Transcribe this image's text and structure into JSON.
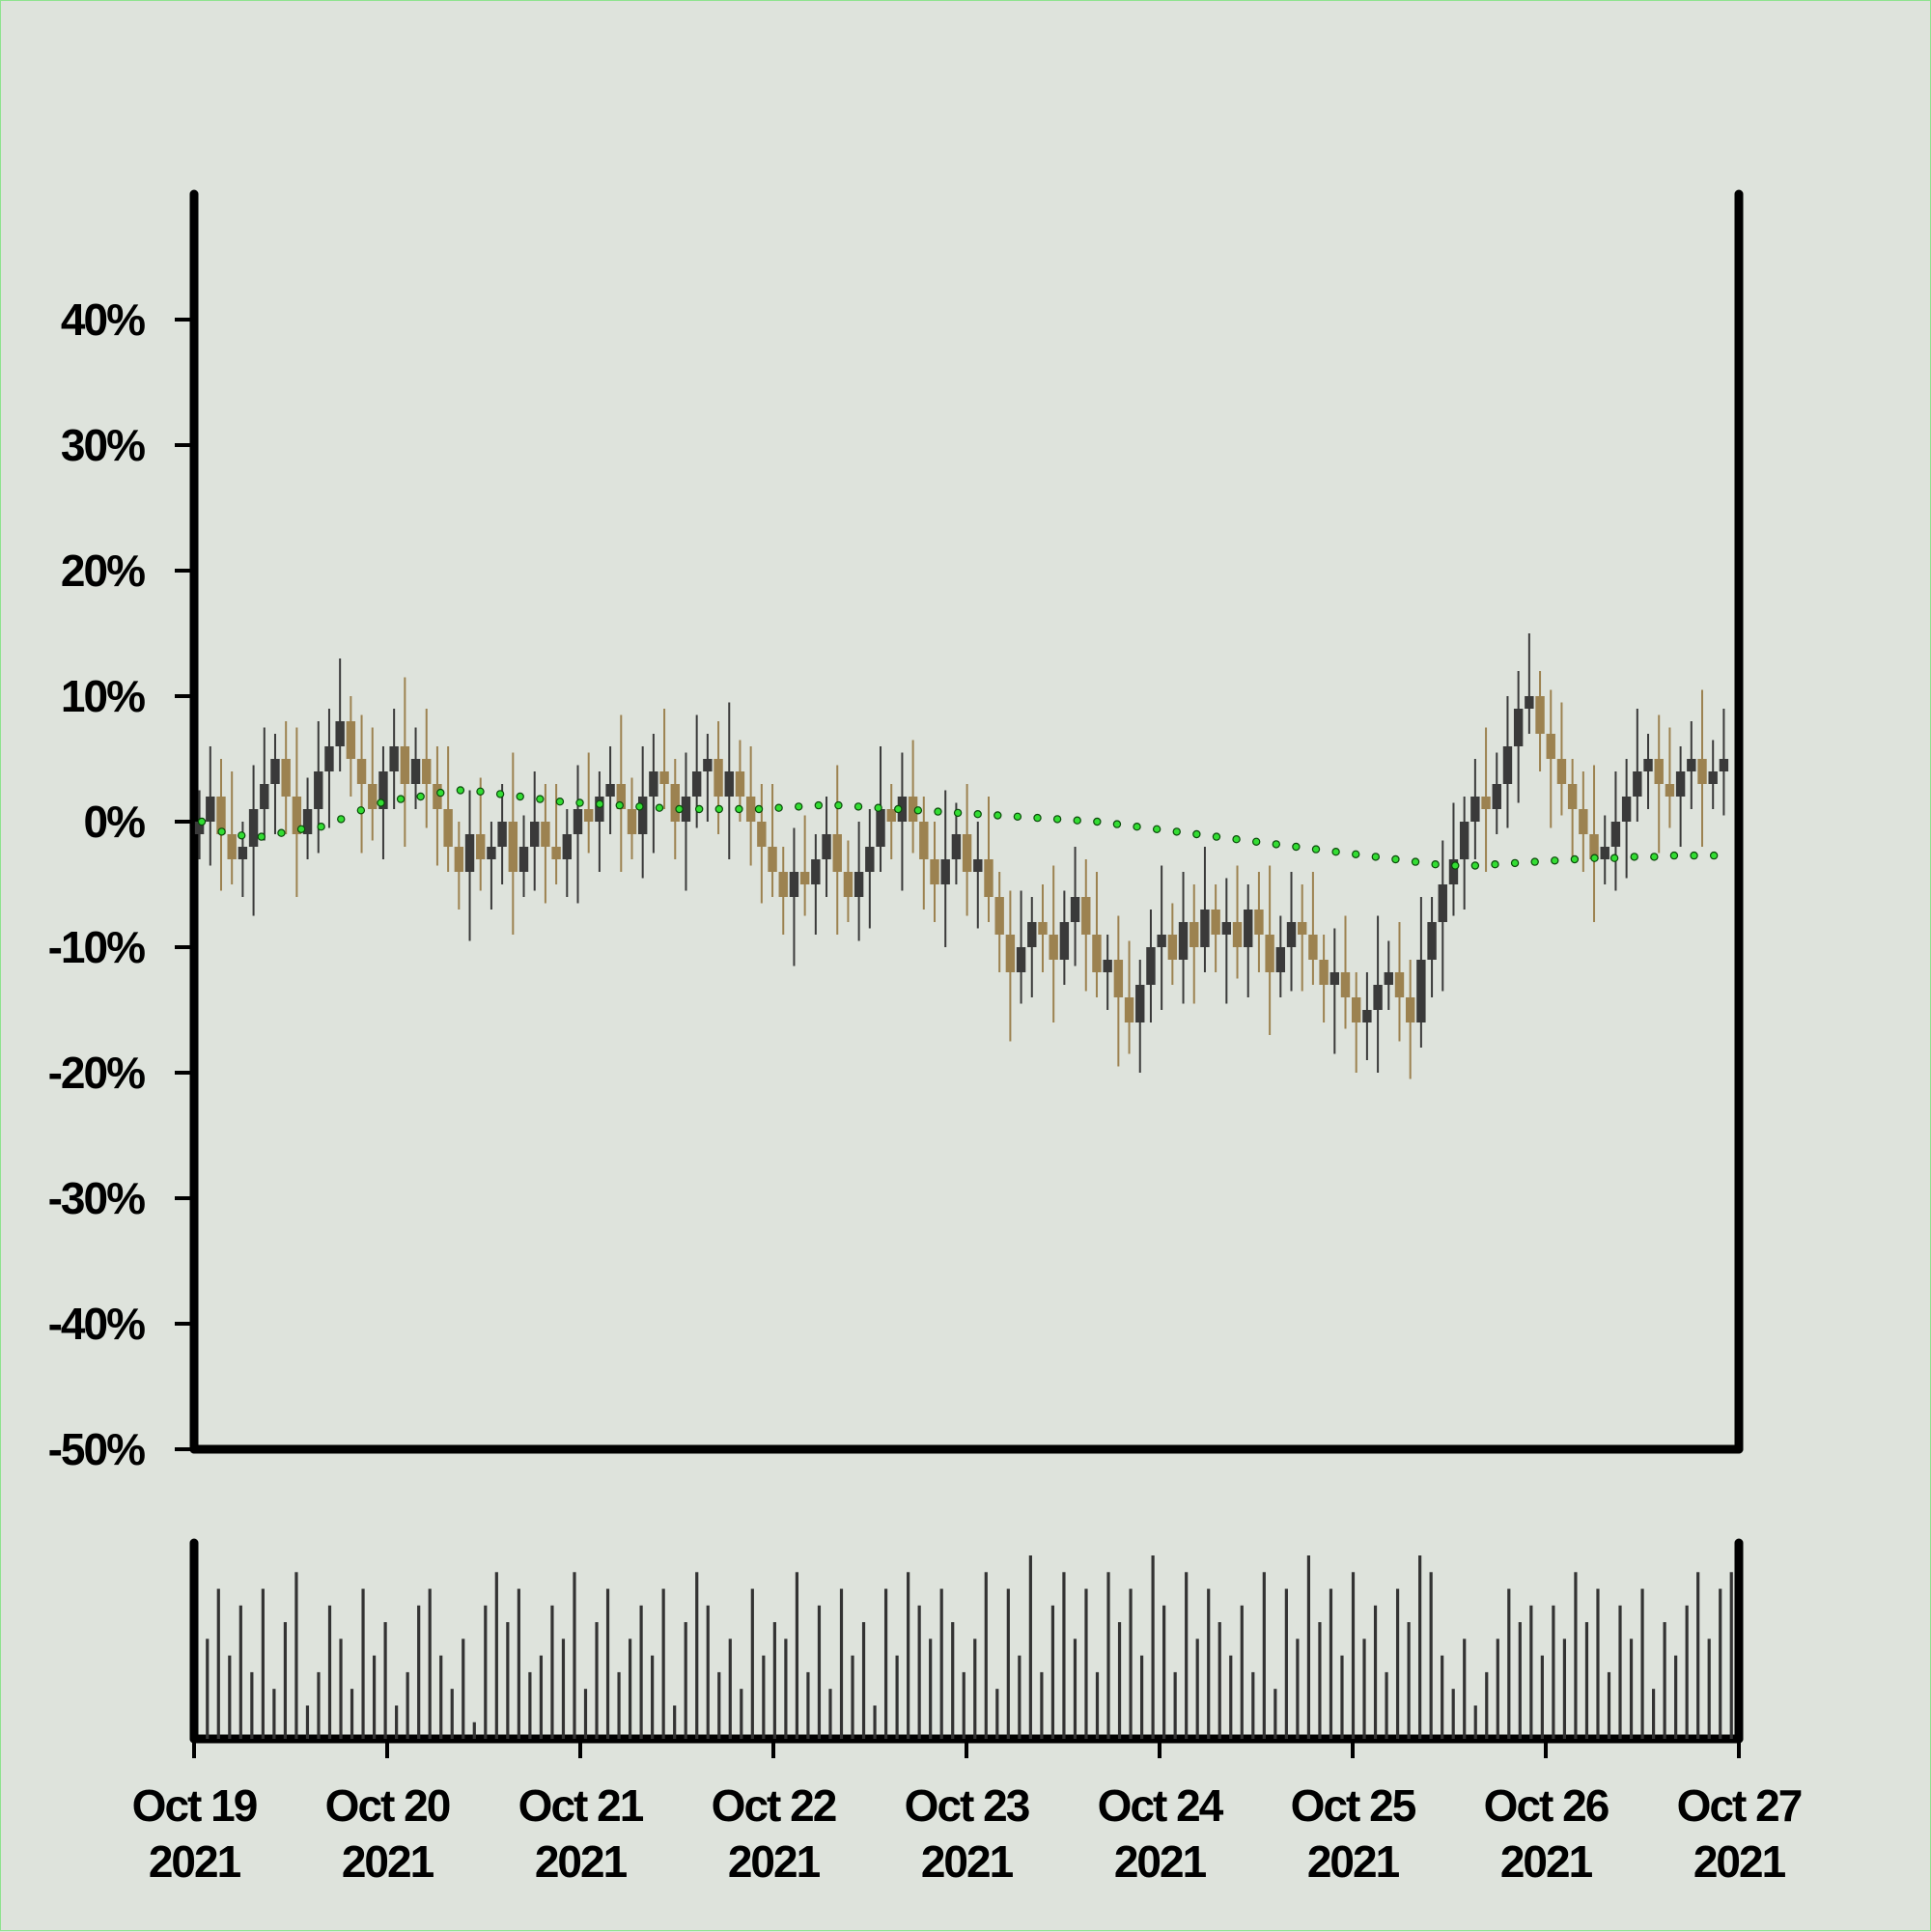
{
  "chart_data": {
    "type": "candlestick",
    "title": "",
    "xlabel": "",
    "ylabel": "",
    "x_range": [
      "2021-10-19",
      "2021-10-27"
    ],
    "x_tick_dates": [
      "2021-10-19",
      "2021-10-20",
      "2021-10-21",
      "2021-10-22",
      "2021-10-23",
      "2021-10-24",
      "2021-10-25",
      "2021-10-26",
      "2021-10-27"
    ],
    "x_tick_labels": [
      [
        "Oct 19",
        "2021"
      ],
      [
        "Oct 20",
        "2021"
      ],
      [
        "Oct 21",
        "2021"
      ],
      [
        "Oct 22",
        "2021"
      ],
      [
        "Oct 23",
        "2021"
      ],
      [
        "Oct 24",
        "2021"
      ],
      [
        "Oct 25",
        "2021"
      ],
      [
        "Oct 26",
        "2021"
      ],
      [
        "Oct 27",
        "2021"
      ]
    ],
    "y_ticks": [
      40,
      30,
      20,
      10,
      0,
      -10,
      -20,
      -30,
      -40,
      -50
    ],
    "y_tick_labels": [
      "40%",
      "30%",
      "20%",
      "10%",
      "0%",
      "-10%",
      "-20%",
      "-30%",
      "-40%",
      "-50%"
    ],
    "ylim": [
      -50,
      50
    ],
    "y_unit": "%",
    "grid": false,
    "legend": "none",
    "colors": {
      "background": "#dee3dc",
      "up_candle": "#3a3a3a",
      "down_candle": "#9c8250",
      "moving_average": "#33dd33",
      "volume": "#333333",
      "axis": "#000000"
    },
    "series": [
      {
        "kind": "close_percent_change",
        "values": [
          0,
          2,
          -1,
          -3,
          -2,
          1,
          3,
          5,
          2,
          -1,
          1,
          4,
          6,
          8,
          5,
          3,
          1,
          4,
          6,
          3,
          5,
          3,
          1,
          -2,
          -4,
          -1,
          -3,
          -2,
          0,
          -4,
          -2,
          0,
          -2,
          -3,
          -1,
          1,
          0,
          2,
          3,
          1,
          -1,
          2,
          4,
          3,
          0,
          2,
          4,
          5,
          2,
          4,
          2,
          0,
          -2,
          -4,
          -6,
          -4,
          -5,
          -3,
          -1,
          -4,
          -6,
          -4,
          -2,
          1,
          0,
          2,
          0,
          -3,
          -5,
          -3,
          -1,
          -4,
          -3,
          -6,
          -9,
          -12,
          -10,
          -8,
          -9,
          -11,
          -8,
          -6,
          -9,
          -12,
          -11,
          -14,
          -16,
          -13,
          -10,
          -9,
          -11,
          -8,
          -10,
          -7,
          -9,
          -8,
          -10,
          -7,
          -9,
          -12,
          -10,
          -8,
          -9,
          -11,
          -13,
          -12,
          -14,
          -16,
          -15,
          -13,
          -12,
          -14,
          -16,
          -11,
          -8,
          -5,
          -3,
          0,
          2,
          1,
          3,
          6,
          9,
          10,
          7,
          5,
          3,
          1,
          -1,
          -3,
          -2,
          0,
          2,
          4,
          5,
          3,
          2,
          4,
          5,
          3,
          4,
          5
        ]
      },
      {
        "kind": "moving_average",
        "values": [
          0,
          -0.8,
          -1.1,
          -1.2,
          -0.9,
          -0.6,
          -0.4,
          0.2,
          0.9,
          1.5,
          1.8,
          2.0,
          2.3,
          2.5,
          2.4,
          2.2,
          2.0,
          1.8,
          1.6,
          1.5,
          1.4,
          1.3,
          1.2,
          1.1,
          1.0,
          1.0,
          1.0,
          1.0,
          1.0,
          1.1,
          1.2,
          1.3,
          1.3,
          1.2,
          1.1,
          1.0,
          0.9,
          0.8,
          0.7,
          0.6,
          0.5,
          0.4,
          0.3,
          0.2,
          0.1,
          0.0,
          -0.2,
          -0.4,
          -0.6,
          -0.8,
          -1.0,
          -1.2,
          -1.4,
          -1.6,
          -1.8,
          -2.0,
          -2.2,
          -2.4,
          -2.6,
          -2.8,
          -3.0,
          -3.2,
          -3.4,
          -3.5,
          -3.5,
          -3.4,
          -3.3,
          -3.2,
          -3.1,
          -3.0,
          -2.9,
          -2.9,
          -2.8,
          -2.8,
          -2.7,
          -2.7,
          -2.7
        ]
      },
      {
        "kind": "volume",
        "values": [
          6,
          9,
          5,
          8,
          4,
          9,
          3,
          7,
          10,
          2,
          4,
          8,
          6,
          3,
          9,
          5,
          7,
          2,
          4,
          8,
          9,
          5,
          3,
          6,
          1,
          8,
          10,
          7,
          9,
          4,
          5,
          8,
          6,
          10,
          3,
          7,
          9,
          4,
          6,
          8,
          5,
          9,
          2,
          7,
          10,
          8,
          4,
          6,
          3,
          9,
          5,
          7,
          6,
          10,
          4,
          8,
          3,
          9,
          5,
          7,
          2,
          9,
          5,
          10,
          8,
          6,
          9,
          7,
          4,
          6,
          10,
          3,
          9,
          5,
          11,
          4,
          8,
          10,
          6,
          9,
          4,
          10,
          7,
          9,
          5,
          11,
          8,
          4,
          10,
          6,
          9,
          7,
          5,
          8,
          4,
          10,
          3,
          9,
          6,
          11,
          7,
          9,
          5,
          10,
          6,
          8,
          4,
          9,
          7,
          11,
          10,
          5,
          3,
          6,
          2,
          4,
          6,
          9,
          7,
          8,
          5,
          8,
          6,
          10,
          7,
          9,
          4,
          8,
          6,
          9,
          3,
          7,
          5,
          8,
          10,
          6,
          9,
          10
        ]
      }
    ]
  }
}
